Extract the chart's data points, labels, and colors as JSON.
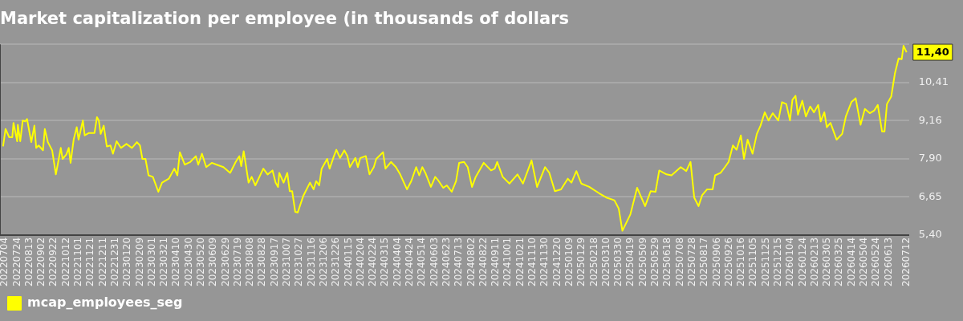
{
  "chart_data": {
    "type": "line",
    "title": "Market capitalization per employee (in thousands of dollars",
    "x": [
      "2022-07-01",
      "2022-07-05",
      "2022-07-11",
      "2022-07-16",
      "2022-07-18",
      "2022-07-24",
      "2022-07-25",
      "2022-07-29",
      "2022-08-02",
      "2022-08-06",
      "2022-08-09",
      "2022-08-16",
      "2022-08-21",
      "2022-08-24",
      "2022-08-28",
      "2022-09-04",
      "2022-09-07",
      "2022-09-12",
      "2022-09-19",
      "2022-09-25",
      "2022-09-28",
      "2022-10-03",
      "2022-10-06",
      "2022-10-12",
      "2022-10-16",
      "2022-10-19",
      "2022-10-24",
      "2022-10-29",
      "2022-11-01",
      "2022-11-08",
      "2022-11-11",
      "2022-11-18",
      "2022-11-27",
      "2022-12-01",
      "2022-12-04",
      "2022-12-07",
      "2022-12-12",
      "2022-12-17",
      "2022-12-23",
      "2022-12-27",
      "2023-01-02",
      "2023-01-09",
      "2023-01-18",
      "2023-01-27",
      "2023-02-04",
      "2023-02-09",
      "2023-02-13",
      "2023-02-18",
      "2023-02-23",
      "2023-03-02",
      "2023-03-11",
      "2023-03-17",
      "2023-03-28",
      "2023-04-06",
      "2023-04-11",
      "2023-04-15",
      "2023-04-23",
      "2023-05-02",
      "2023-05-11",
      "2023-05-15",
      "2023-05-21",
      "2023-05-28",
      "2023-06-06",
      "2023-06-14",
      "2023-06-25",
      "2023-07-06",
      "2023-07-15",
      "2023-07-21",
      "2023-07-24",
      "2023-07-28",
      "2023-07-30",
      "2023-08-05",
      "2023-08-10",
      "2023-08-16",
      "2023-08-29",
      "2023-09-05",
      "2023-09-13",
      "2023-09-18",
      "2023-09-22",
      "2023-09-24",
      "2023-10-01",
      "2023-10-07",
      "2023-10-11",
      "2023-10-15",
      "2023-10-20",
      "2023-10-24",
      "2023-11-02",
      "2023-11-13",
      "2023-11-19",
      "2023-11-23",
      "2023-11-28",
      "2023-12-02",
      "2023-12-11",
      "2023-12-15",
      "2023-12-22",
      "2023-12-26",
      "2024-01-01",
      "2024-01-08",
      "2024-01-13",
      "2024-01-17",
      "2024-01-26",
      "2024-01-30",
      "2024-02-03",
      "2024-02-12",
      "2024-02-18",
      "2024-02-25",
      "2024-02-29",
      "2024-03-11",
      "2024-03-15",
      "2024-03-24",
      "2024-04-01",
      "2024-04-08",
      "2024-04-19",
      "2024-04-26",
      "2024-05-04",
      "2024-05-09",
      "2024-05-14",
      "2024-05-19",
      "2024-05-28",
      "2024-06-04",
      "2024-06-08",
      "2024-06-17",
      "2024-06-23",
      "2024-07-01",
      "2024-07-08",
      "2024-07-13",
      "2024-07-21",
      "2024-07-27",
      "2024-08-03",
      "2024-08-09",
      "2024-08-22",
      "2024-09-03",
      "2024-09-09",
      "2024-09-13",
      "2024-09-22",
      "2024-10-03",
      "2024-10-16",
      "2024-10-25",
      "2024-11-08",
      "2024-11-17",
      "2024-11-30",
      "2024-12-07",
      "2024-12-16",
      "2024-12-26",
      "2025-01-06",
      "2025-01-12",
      "2025-01-20",
      "2025-01-28",
      "2025-02-10",
      "2025-02-27",
      "2025-03-10",
      "2025-03-23",
      "2025-03-30",
      "2025-04-05",
      "2025-04-18",
      "2025-04-29",
      "2025-05-12",
      "2025-05-21",
      "2025-05-29",
      "2025-06-04",
      "2025-06-16",
      "2025-06-24",
      "2025-07-09",
      "2025-07-18",
      "2025-07-25",
      "2025-07-31",
      "2025-08-07",
      "2025-08-13",
      "2025-08-21",
      "2025-08-30",
      "2025-09-03",
      "2025-09-12",
      "2025-09-19",
      "2025-09-25",
      "2025-10-02",
      "2025-10-08",
      "2025-10-15",
      "2025-10-20",
      "2025-10-26",
      "2025-11-03",
      "2025-11-10",
      "2025-11-16",
      "2025-11-23",
      "2025-11-29",
      "2025-12-06",
      "2025-12-15",
      "2025-12-21",
      "2025-12-28",
      "2026-01-03",
      "2026-01-07",
      "2026-01-12",
      "2026-01-16",
      "2026-01-23",
      "2026-01-29",
      "2026-02-05",
      "2026-02-11",
      "2026-02-18",
      "2026-02-22",
      "2026-02-28",
      "2026-03-04",
      "2026-03-10",
      "2026-03-20",
      "2026-03-29",
      "2026-04-04",
      "2026-04-13",
      "2026-04-20",
      "2026-04-28",
      "2026-05-05",
      "2026-05-13",
      "2026-05-20",
      "2026-05-26",
      "2026-06-02",
      "2026-06-06",
      "2026-06-10",
      "2026-06-17",
      "2026-06-23",
      "2026-06-29",
      "2026-07-04",
      "2026-07-07",
      "2026-07-12"
    ],
    "series": [
      {
        "name": "mcap_employees_seg",
        "color": "#ffff00",
        "values": [
          8.31,
          8.88,
          8.61,
          8.61,
          9.08,
          8.48,
          9.02,
          8.48,
          9.16,
          9.13,
          9.21,
          8.45,
          8.99,
          8.26,
          8.34,
          8.18,
          8.88,
          8.45,
          8.18,
          7.39,
          7.71,
          8.26,
          7.9,
          8.04,
          8.26,
          7.77,
          8.53,
          8.94,
          8.53,
          9.16,
          8.67,
          8.75,
          8.75,
          9.27,
          9.16,
          8.72,
          8.99,
          8.31,
          8.34,
          8.07,
          8.48,
          8.26,
          8.39,
          8.26,
          8.45,
          8.34,
          7.9,
          7.9,
          7.36,
          7.31,
          6.82,
          7.12,
          7.25,
          7.58,
          7.36,
          8.12,
          7.71,
          7.8,
          7.99,
          7.71,
          8.07,
          7.63,
          7.77,
          7.71,
          7.63,
          7.44,
          7.8,
          7.99,
          7.66,
          8.15,
          7.9,
          7.12,
          7.31,
          7.03,
          7.58,
          7.39,
          7.52,
          7.12,
          6.98,
          7.44,
          7.12,
          7.44,
          6.84,
          6.84,
          6.16,
          6.14,
          6.68,
          7.12,
          6.9,
          7.17,
          7.03,
          7.58,
          7.9,
          7.58,
          7.99,
          8.2,
          7.93,
          8.18,
          7.99,
          7.63,
          7.93,
          7.63,
          7.93,
          7.99,
          7.39,
          7.63,
          7.9,
          8.12,
          7.58,
          7.8,
          7.63,
          7.39,
          6.9,
          7.17,
          7.63,
          7.36,
          7.63,
          7.44,
          6.98,
          7.31,
          7.22,
          6.95,
          7.03,
          6.82,
          7.17,
          7.77,
          7.8,
          7.63,
          6.98,
          7.31,
          7.77,
          7.52,
          7.58,
          7.8,
          7.31,
          7.09,
          7.39,
          7.09,
          7.85,
          6.98,
          7.63,
          7.44,
          6.84,
          6.9,
          7.25,
          7.12,
          7.5,
          7.09,
          6.98,
          6.76,
          6.63,
          6.54,
          6.27,
          5.54,
          6.08,
          6.95,
          6.35,
          6.84,
          6.82,
          7.52,
          7.39,
          7.36,
          7.63,
          7.5,
          7.8,
          6.63,
          6.35,
          6.71,
          6.9,
          6.9,
          7.36,
          7.44,
          7.63,
          7.8,
          8.34,
          8.2,
          8.67,
          7.9,
          8.53,
          8.07,
          8.72,
          8.99,
          9.43,
          9.16,
          9.4,
          9.16,
          9.76,
          9.7,
          9.16,
          9.84,
          9.97,
          9.35,
          9.81,
          9.29,
          9.62,
          9.43,
          9.67,
          9.13,
          9.43,
          8.94,
          9.08,
          8.53,
          8.72,
          9.29,
          9.76,
          9.89,
          9.02,
          9.54,
          9.4,
          9.48,
          9.67,
          8.8,
          8.8,
          9.7,
          9.95,
          10.71,
          11.2,
          11.17,
          11.61,
          11.4
        ]
      }
    ],
    "xlim": [
      "2022-06-26",
      "2026-07-16"
    ],
    "xticks": [
      {
        "value": "2022-07-04",
        "label": "20220704"
      },
      {
        "value": "2022-07-24",
        "label": "20220724"
      },
      {
        "value": "2022-08-13",
        "label": "20220813"
      },
      {
        "value": "2022-09-02",
        "label": "20220902"
      },
      {
        "value": "2022-09-22",
        "label": "20220922"
      },
      {
        "value": "2022-10-12",
        "label": "20221012"
      },
      {
        "value": "2022-11-01",
        "label": "20221101"
      },
      {
        "value": "2022-11-21",
        "label": "20221121"
      },
      {
        "value": "2022-12-11",
        "label": "20221211"
      },
      {
        "value": "2022-12-31",
        "label": "20221231"
      },
      {
        "value": "2023-01-20",
        "label": "20230120"
      },
      {
        "value": "2023-02-09",
        "label": "20230209"
      },
      {
        "value": "2023-03-01",
        "label": "20230301"
      },
      {
        "value": "2023-03-21",
        "label": "20230321"
      },
      {
        "value": "2023-04-10",
        "label": "20230410"
      },
      {
        "value": "2023-04-30",
        "label": "20230430"
      },
      {
        "value": "2023-05-20",
        "label": "20230520"
      },
      {
        "value": "2023-06-09",
        "label": "20230609"
      },
      {
        "value": "2023-06-29",
        "label": "20230629"
      },
      {
        "value": "2023-07-19",
        "label": "20230719"
      },
      {
        "value": "2023-08-08",
        "label": "20230808"
      },
      {
        "value": "2023-08-28",
        "label": "20230828"
      },
      {
        "value": "2023-09-17",
        "label": "20230917"
      },
      {
        "value": "2023-10-07",
        "label": "20231007"
      },
      {
        "value": "2023-10-27",
        "label": "20231027"
      },
      {
        "value": "2023-11-16",
        "label": "20231116"
      },
      {
        "value": "2023-12-06",
        "label": "20231206"
      },
      {
        "value": "2023-12-26",
        "label": "20231226"
      },
      {
        "value": "2024-01-15",
        "label": "20240115"
      },
      {
        "value": "2024-02-04",
        "label": "20240204"
      },
      {
        "value": "2024-02-24",
        "label": "20240224"
      },
      {
        "value": "2024-03-15",
        "label": "20240315"
      },
      {
        "value": "2024-04-04",
        "label": "20240404"
      },
      {
        "value": "2024-04-24",
        "label": "20240424"
      },
      {
        "value": "2024-05-14",
        "label": "20240514"
      },
      {
        "value": "2024-06-03",
        "label": "20240603"
      },
      {
        "value": "2024-06-23",
        "label": "20240623"
      },
      {
        "value": "2024-07-13",
        "label": "20240713"
      },
      {
        "value": "2024-08-02",
        "label": "20240802"
      },
      {
        "value": "2024-08-22",
        "label": "20240822"
      },
      {
        "value": "2024-09-11",
        "label": "20240911"
      },
      {
        "value": "2024-10-01",
        "label": "20241001"
      },
      {
        "value": "2024-10-21",
        "label": "20241021"
      },
      {
        "value": "2024-11-10",
        "label": "20241110"
      },
      {
        "value": "2024-11-30",
        "label": "20241130"
      },
      {
        "value": "2024-12-20",
        "label": "20241220"
      },
      {
        "value": "2025-01-09",
        "label": "20250109"
      },
      {
        "value": "2025-01-29",
        "label": "20250129"
      },
      {
        "value": "2025-02-18",
        "label": "20250218"
      },
      {
        "value": "2025-03-10",
        "label": "20250310"
      },
      {
        "value": "2025-03-30",
        "label": "20250330"
      },
      {
        "value": "2025-04-19",
        "label": "20250419"
      },
      {
        "value": "2025-05-09",
        "label": "20250509"
      },
      {
        "value": "2025-05-29",
        "label": "20250529"
      },
      {
        "value": "2025-06-18",
        "label": "20250618"
      },
      {
        "value": "2025-07-08",
        "label": "20250708"
      },
      {
        "value": "2025-07-28",
        "label": "20250728"
      },
      {
        "value": "2025-08-17",
        "label": "20250817"
      },
      {
        "value": "2025-09-06",
        "label": "20250906"
      },
      {
        "value": "2025-09-26",
        "label": "20250926"
      },
      {
        "value": "2025-10-16",
        "label": "20251016"
      },
      {
        "value": "2025-11-05",
        "label": "20251105"
      },
      {
        "value": "2025-11-25",
        "label": "20251125"
      },
      {
        "value": "2025-12-15",
        "label": "20251215"
      },
      {
        "value": "2026-01-04",
        "label": "20260104"
      },
      {
        "value": "2026-01-24",
        "label": "20260124"
      },
      {
        "value": "2026-02-13",
        "label": "20260213"
      },
      {
        "value": "2026-03-05",
        "label": "20260305"
      },
      {
        "value": "2026-03-25",
        "label": "20260325"
      },
      {
        "value": "2026-04-14",
        "label": "20260414"
      },
      {
        "value": "2026-05-04",
        "label": "20260504"
      },
      {
        "value": "2026-05-24",
        "label": "20260524"
      },
      {
        "value": "2026-06-13",
        "label": "20260613"
      },
      {
        "value": "2026-07-12",
        "label": "20260712"
      }
    ],
    "ylim": [
      5.4,
      11.66
    ],
    "yticks": [
      {
        "value": 5.4,
        "label": "5,40"
      },
      {
        "value": 6.65,
        "label": "6,65"
      },
      {
        "value": 7.9,
        "label": "7,90"
      },
      {
        "value": 9.16,
        "label": "9,16"
      },
      {
        "value": 10.41,
        "label": "10,41"
      },
      {
        "value": 11.66,
        "label": null
      }
    ],
    "grid": "y",
    "legend": "bottom left",
    "annotations": [
      {
        "text": "11,40",
        "x": "2026-07-12",
        "y": 11.4
      }
    ]
  }
}
